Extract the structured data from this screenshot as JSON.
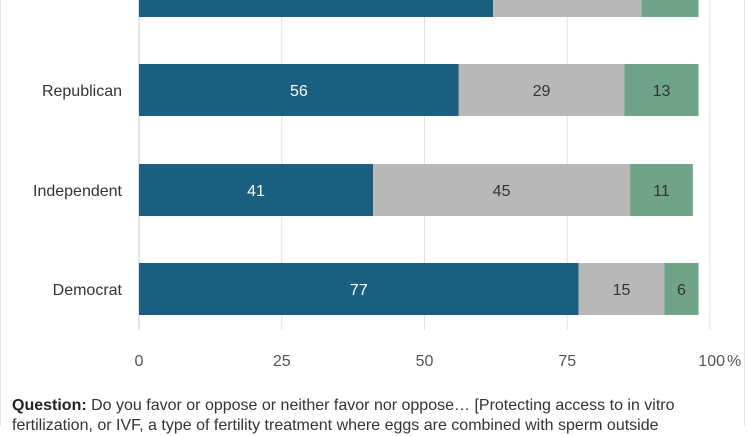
{
  "chart_data": {
    "type": "bar",
    "orientation": "horizontal",
    "stacked": true,
    "categories": [
      "",
      "Republican",
      "Independent",
      "Democrat"
    ],
    "series": [
      {
        "values": [
          62,
          56,
          41,
          77
        ],
        "labels": [
          "",
          "56",
          "41",
          "77"
        ],
        "color": "#1a5f7f"
      },
      {
        "values": [
          26,
          29,
          45,
          15
        ],
        "labels": [
          "",
          "29",
          "45",
          "15"
        ],
        "color": "#b8b8b8"
      },
      {
        "values": [
          10,
          13,
          11,
          6
        ],
        "labels": [
          "",
          "13",
          "11",
          "6"
        ],
        "color": "#70a488"
      }
    ],
    "xlim": [
      0,
      100
    ],
    "xticks": [
      "0",
      "25",
      "50",
      "75",
      "100"
    ],
    "x_unit": "%",
    "grid": true
  },
  "question": {
    "label": "Question:",
    "text": " Do you favor or oppose or neither favor nor oppose… [Protecting access to in vitro fertilization, or IVF, a type of fertility treatment where eggs are combined with sperm outside"
  }
}
